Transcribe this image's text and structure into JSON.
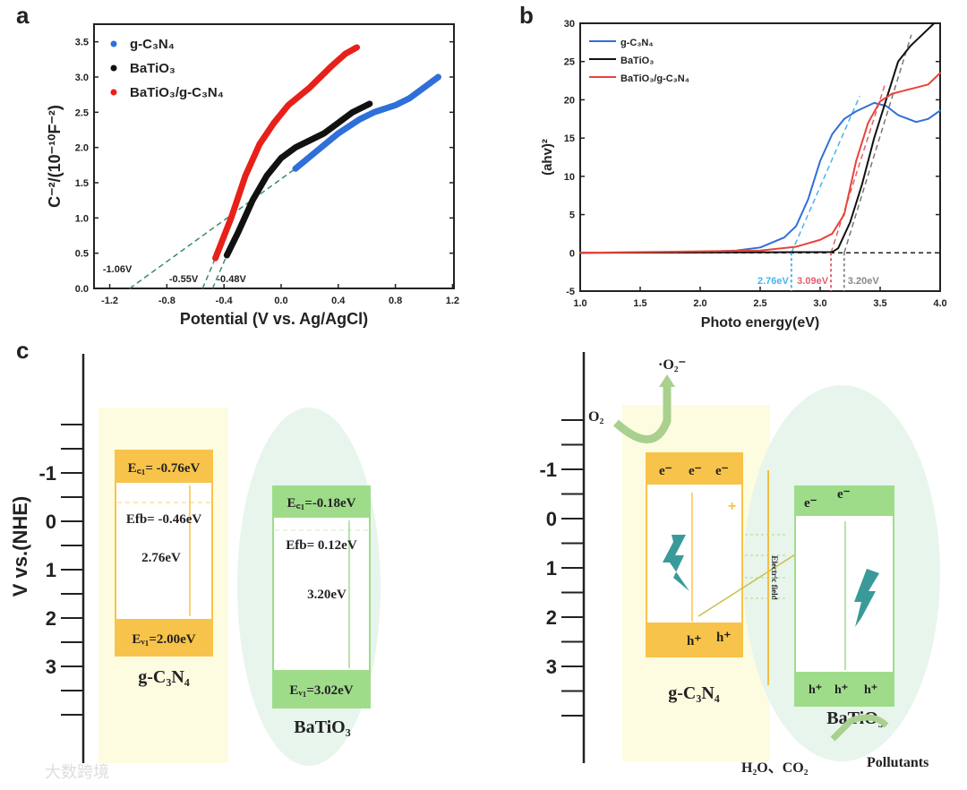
{
  "panel_labels": {
    "a": "a",
    "b": "b",
    "c": "c"
  },
  "chart_data": [
    {
      "type": "scatter",
      "title": "",
      "xlabel": "Potential (V vs. Ag/AgCl)",
      "ylabel": "C⁻²/(10⁻¹⁰F⁻²)",
      "xlim": [
        -1.31,
        1.21
      ],
      "ylim": [
        0,
        3.75
      ],
      "xticks": [
        -1.2,
        -0.8,
        -0.4,
        0.0,
        0.4,
        0.8,
        1.2
      ],
      "xtick_labels": [
        "-1.2",
        "-0.8",
        "-0.4",
        "0.0",
        "0.4",
        "0.8",
        "1.2"
      ],
      "yticks": [
        0,
        0.5,
        1.0,
        1.5,
        2.0,
        2.5,
        3.0,
        3.5
      ],
      "ytick_labels": [
        "0.0",
        "0.5",
        "1.0",
        "1.5",
        "2.0",
        "2.5",
        "3.0",
        "3.5"
      ],
      "legend_position": "top-left",
      "series": [
        {
          "name": "g-C₃N₄",
          "color": "#2f6fd8",
          "x": [
            0.1,
            0.25,
            0.4,
            0.55,
            0.65,
            0.8,
            0.9,
            1.0,
            1.1
          ],
          "y": [
            1.7,
            1.95,
            2.2,
            2.4,
            2.5,
            2.6,
            2.7,
            2.85,
            3.0
          ]
        },
        {
          "name": "BaTiO₃",
          "color": "#111111",
          "x": [
            -0.38,
            -0.3,
            -0.2,
            -0.1,
            0.0,
            0.1,
            0.2,
            0.3,
            0.4,
            0.5,
            0.62
          ],
          "y": [
            0.47,
            0.8,
            1.25,
            1.6,
            1.85,
            2.0,
            2.1,
            2.2,
            2.35,
            2.5,
            2.62
          ]
        },
        {
          "name": "BaTiO₃/g-C₃N₄",
          "color": "#e8201a",
          "x": [
            -0.46,
            -0.35,
            -0.25,
            -0.15,
            -0.05,
            0.05,
            0.2,
            0.35,
            0.45,
            0.53
          ],
          "y": [
            0.43,
            1.0,
            1.6,
            2.05,
            2.35,
            2.6,
            2.85,
            3.15,
            3.33,
            3.42
          ]
        }
      ],
      "fit_lines": [
        {
          "x": [
            -1.06,
            0.1
          ],
          "y": [
            0,
            1.7
          ]
        },
        {
          "x": [
            -0.55,
            -0.46
          ],
          "y": [
            0,
            0.43
          ]
        },
        {
          "x": [
            -0.48,
            -0.38
          ],
          "y": [
            0,
            0.47
          ]
        }
      ],
      "annotations": [
        {
          "text": "-1.06V",
          "x": -1.06,
          "y": 0
        },
        {
          "text": "-0.55V",
          "x": -0.55,
          "y": 0
        },
        {
          "text": "-0.48V",
          "x": -0.48,
          "y": 0
        }
      ]
    },
    {
      "type": "line",
      "title": "",
      "xlabel": "Photo energy(eV)",
      "ylabel": "(ahv)²",
      "xlim": [
        1.0,
        4.0
      ],
      "ylim": [
        -5,
        30
      ],
      "xticks": [
        1.0,
        1.5,
        2.0,
        2.5,
        3.0,
        3.5,
        4.0
      ],
      "xtick_labels": [
        "1.0",
        "1.5",
        "2.0",
        "2.5",
        "3.0",
        "3.5",
        "4.0"
      ],
      "yticks": [
        -5,
        0,
        5,
        10,
        15,
        20,
        25,
        30
      ],
      "ytick_labels": [
        "-5",
        "0",
        "5",
        "10",
        "15",
        "20",
        "25",
        "30"
      ],
      "legend_position": "top-left",
      "series": [
        {
          "name": "g-C₃N₄",
          "color": "#2f6fd8",
          "x": [
            1.0,
            2.0,
            2.3,
            2.5,
            2.7,
            2.8,
            2.9,
            3.0,
            3.1,
            3.2,
            3.3,
            3.45,
            3.55,
            3.65,
            3.8,
            3.9,
            4.0
          ],
          "y": [
            0,
            0.1,
            0.3,
            0.7,
            2.0,
            3.5,
            7.0,
            12.0,
            15.5,
            17.5,
            18.5,
            19.6,
            19.2,
            18.0,
            17.1,
            17.5,
            18.6
          ]
        },
        {
          "name": "BaTiO₃",
          "color": "#111111",
          "x": [
            1.0,
            3.1,
            3.15,
            3.25,
            3.35,
            3.45,
            3.55,
            3.65,
            3.75,
            3.85,
            3.95
          ],
          "y": [
            0,
            0.1,
            0.6,
            4.0,
            9.0,
            15.0,
            20.0,
            25.0,
            27.0,
            28.5,
            30.0
          ]
        },
        {
          "name": "BaTiO₃/g-C₃N₄",
          "color": "#e8443a",
          "x": [
            1.0,
            2.5,
            2.8,
            3.0,
            3.1,
            3.2,
            3.3,
            3.4,
            3.5,
            3.6,
            3.7,
            3.9,
            4.0
          ],
          "y": [
            0,
            0.3,
            0.8,
            1.7,
            2.5,
            5.0,
            12.0,
            17.0,
            19.8,
            20.8,
            21.2,
            22.0,
            23.5
          ]
        }
      ],
      "fit_lines": [
        {
          "color": "#45b4ee",
          "x": [
            2.76,
            3.33
          ],
          "y": [
            0,
            20.5
          ]
        },
        {
          "color": "#e06070",
          "x": [
            3.09,
            3.54
          ],
          "y": [
            0,
            22
          ]
        },
        {
          "color": "#777777",
          "x": [
            3.2,
            3.76
          ],
          "y": [
            0,
            28.5
          ]
        }
      ],
      "baseline": {
        "y": 0
      },
      "annotations": [
        {
          "text": "2.76eV",
          "x": 2.76,
          "color": "#45b4ee"
        },
        {
          "text": "3.09eV",
          "x": 3.09,
          "color": "#e06070"
        },
        {
          "text": "3.20eV",
          "x": 3.2,
          "color": "#888888"
        }
      ]
    }
  ],
  "diagram": {
    "axis_label": "V vs.(NHE)",
    "axis_ticks": [
      "-1",
      "0",
      "1",
      "2",
      "3"
    ],
    "left": {
      "gcn_ec": "E꜀₁= -0.76eV",
      "gcn_efb": "Efb= -0.46eV",
      "gcn_gap": "2.76eV",
      "gcn_ev": "Eᵥ₁=2.00eV",
      "gcn_name": "g-C₃N₄",
      "bto_ec": "E꜀₁=-0.18eV",
      "bto_efb": "Efb= 0.12eV",
      "bto_gap": "3.20eV",
      "bto_ev": "Eᵥ₁=3.02eV",
      "bto_name": "BaTiO₃"
    },
    "right": {
      "superoxide": "·O₂⁻",
      "o2": "O₂",
      "electron": "e⁻",
      "hole": "h⁺",
      "field": "Electric field",
      "gcn_name": "g-C₃N₄",
      "bto_name": "BaTiO₃",
      "products": "H₂O、CO₂",
      "pollutants": "Pollutants"
    },
    "watermark": "大数跨境"
  },
  "colors": {
    "orange": "#f8c34a",
    "green": "#9fdc8a",
    "yellow_bg": "#fdfce0",
    "green_bg": "#e8f5ec"
  }
}
